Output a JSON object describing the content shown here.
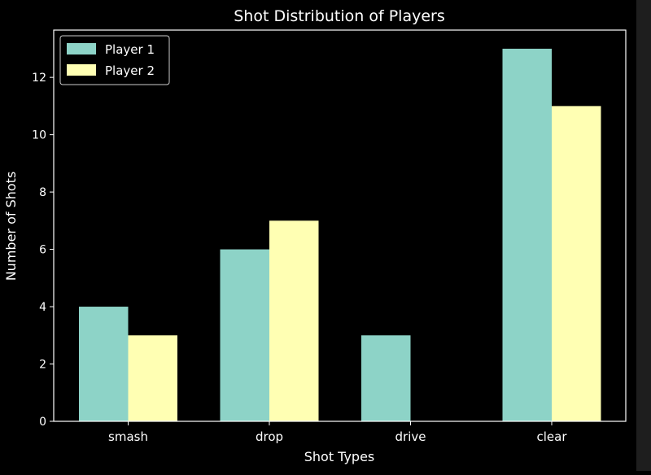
{
  "chart_data": {
    "type": "bar",
    "title": "Shot Distribution of Players",
    "xlabel": "Shot Types",
    "ylabel": "Number of Shots",
    "categories": [
      "smash",
      "drop",
      "drive",
      "clear"
    ],
    "series": [
      {
        "name": "Player 1",
        "values": [
          4,
          6,
          3,
          13
        ],
        "color": "#8dd3c7"
      },
      {
        "name": "Player 2",
        "values": [
          3,
          7,
          0,
          11
        ],
        "color": "#ffffb3"
      }
    ],
    "ylim": [
      0,
      13.65
    ],
    "yticks": [
      0,
      2,
      4,
      6,
      8,
      10,
      12
    ],
    "legend": "top-left",
    "grid": false,
    "background": "#000000",
    "axis_color": "#ffffff"
  }
}
